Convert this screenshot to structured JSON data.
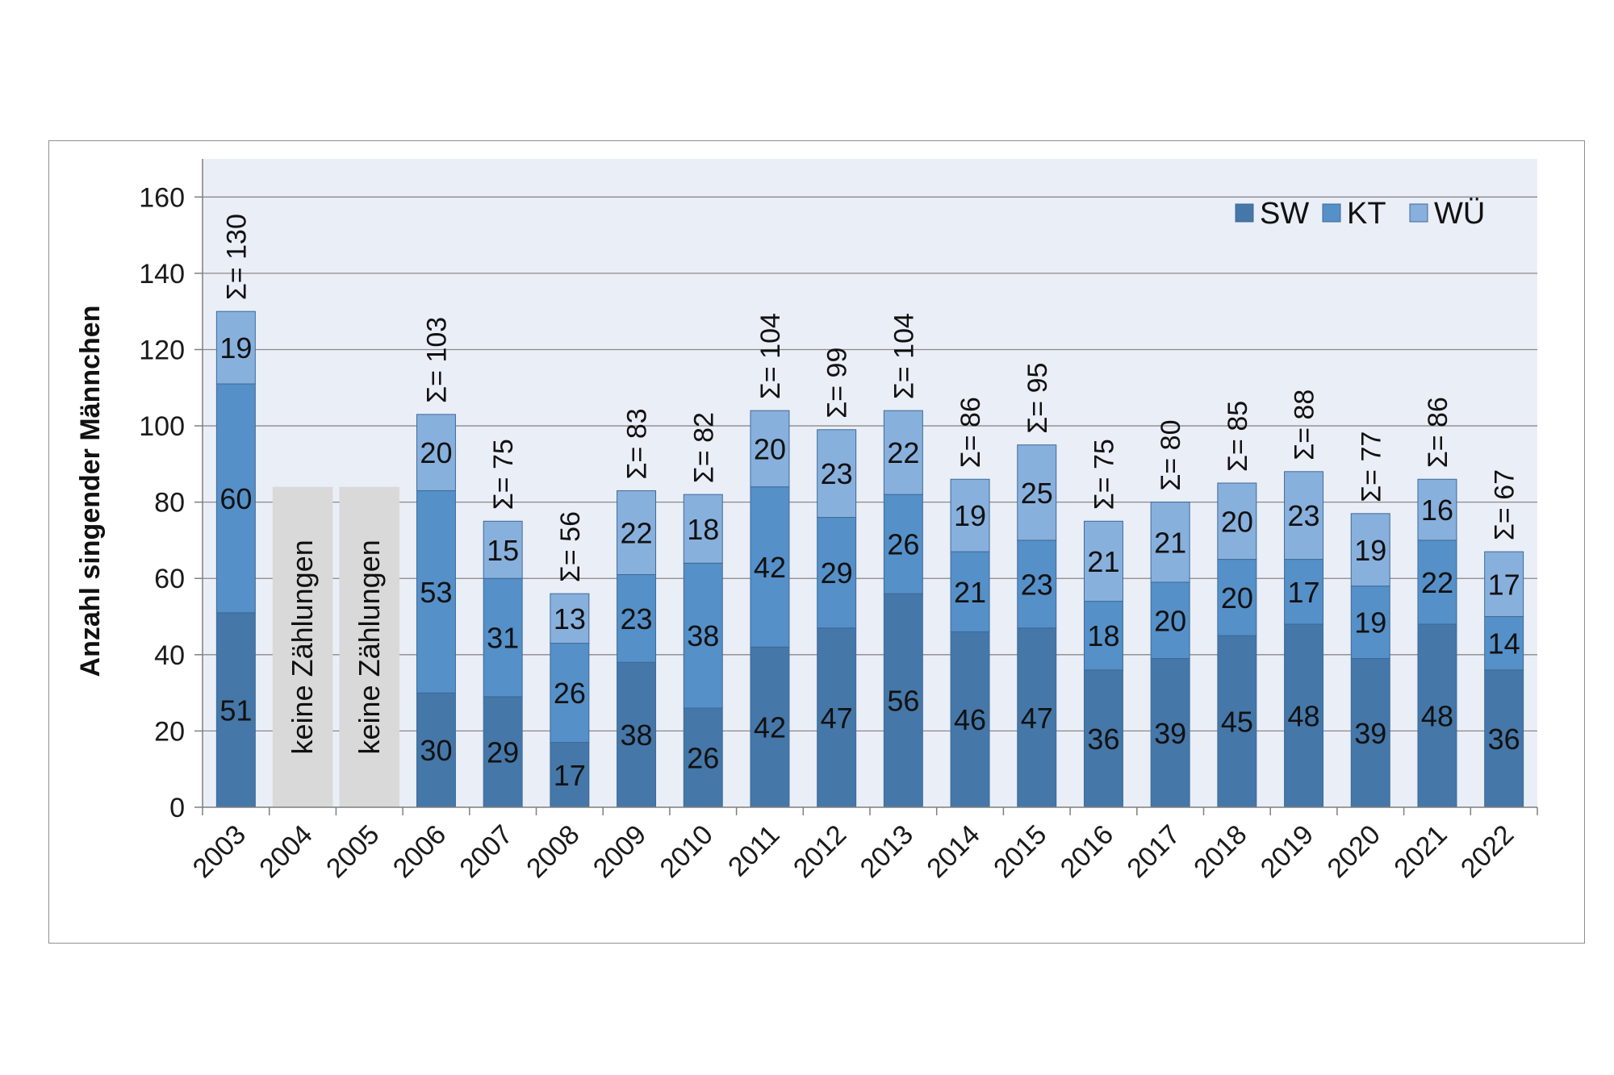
{
  "chart_data": {
    "type": "bar",
    "stacked": true,
    "title": "",
    "xlabel": "",
    "ylabel": "Anzahl singender Männchen",
    "ylim": [
      0,
      170
    ],
    "yticks": [
      0,
      20,
      40,
      60,
      80,
      100,
      120,
      140,
      160
    ],
    "grid": true,
    "legend_position": "top-right",
    "categories": [
      "2003",
      "2004",
      "2005",
      "2006",
      "2007",
      "2008",
      "2009",
      "2010",
      "2011",
      "2012",
      "2013",
      "2014",
      "2015",
      "2016",
      "2017",
      "2018",
      "2019",
      "2020",
      "2021",
      "2022"
    ],
    "series": [
      {
        "name": "SW",
        "color": "#4577a8",
        "values": [
          51,
          null,
          null,
          30,
          29,
          17,
          38,
          26,
          42,
          47,
          56,
          46,
          47,
          36,
          39,
          45,
          48,
          39,
          48,
          36
        ]
      },
      {
        "name": "KT",
        "color": "#5590c8",
        "values": [
          60,
          null,
          null,
          53,
          31,
          26,
          23,
          38,
          42,
          29,
          26,
          21,
          23,
          18,
          20,
          20,
          17,
          19,
          22,
          14
        ]
      },
      {
        "name": "WÜ",
        "color": "#88b0dd",
        "values": [
          19,
          null,
          null,
          20,
          15,
          13,
          22,
          18,
          20,
          23,
          22,
          19,
          25,
          21,
          21,
          20,
          23,
          19,
          16,
          17
        ]
      }
    ],
    "totals": [
      130,
      null,
      null,
      103,
      75,
      56,
      83,
      82,
      104,
      99,
      104,
      86,
      95,
      75,
      80,
      85,
      88,
      77,
      86,
      67
    ],
    "sum_prefix": "Σ= ",
    "missing": [
      {
        "category": "2004",
        "label": "keine Zählungen"
      },
      {
        "category": "2005",
        "label": "keine Zählungen"
      }
    ],
    "colors": {
      "plot_background": "#eaeef7",
      "gridline": "#8a8a8a",
      "missing_fill": "#d9d9d9",
      "bar_stroke": "#3d6a98"
    }
  }
}
